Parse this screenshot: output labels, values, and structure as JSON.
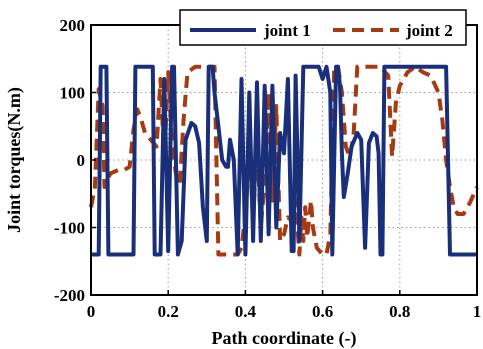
{
  "chart_data": {
    "type": "line",
    "title": "",
    "xlabel": "Path coordinate (-)",
    "ylabel": "Joint torques(N.m)",
    "xlim": [
      0,
      1
    ],
    "ylim": [
      -200,
      200
    ],
    "x_ticks": [
      "0",
      "0.2",
      "0.4",
      "0.6",
      "0.8",
      "1"
    ],
    "y_ticks": [
      "200",
      "100",
      "0",
      "-100",
      "-200"
    ],
    "grid": true,
    "legend_position": "top-right",
    "series": [
      {
        "name": "joint 1",
        "color": "#1a2f7a",
        "style": "solid",
        "points": [
          [
            0.0,
            -140
          ],
          [
            0.02,
            -140
          ],
          [
            0.025,
            138
          ],
          [
            0.04,
            138
          ],
          [
            0.045,
            -140
          ],
          [
            0.11,
            -140
          ],
          [
            0.115,
            138
          ],
          [
            0.16,
            138
          ],
          [
            0.165,
            -140
          ],
          [
            0.18,
            -140
          ],
          [
            0.19,
            120
          ],
          [
            0.2,
            -135
          ],
          [
            0.21,
            138
          ],
          [
            0.215,
            138
          ],
          [
            0.225,
            -140
          ],
          [
            0.235,
            -120
          ],
          [
            0.245,
            30
          ],
          [
            0.26,
            55
          ],
          [
            0.27,
            50
          ],
          [
            0.28,
            25
          ],
          [
            0.29,
            -70
          ],
          [
            0.3,
            -120
          ],
          [
            0.305,
            138
          ],
          [
            0.315,
            138
          ],
          [
            0.32,
            100
          ],
          [
            0.33,
            50
          ],
          [
            0.34,
            0
          ],
          [
            0.35,
            -10
          ],
          [
            0.355,
            -10
          ],
          [
            0.36,
            30
          ],
          [
            0.37,
            0
          ],
          [
            0.38,
            -140
          ],
          [
            0.39,
            120
          ],
          [
            0.4,
            -140
          ],
          [
            0.41,
            100
          ],
          [
            0.42,
            -120
          ],
          [
            0.43,
            115
          ],
          [
            0.44,
            -120
          ],
          [
            0.45,
            110
          ],
          [
            0.46,
            -110
          ],
          [
            0.47,
            110
          ],
          [
            0.48,
            -100
          ],
          [
            0.49,
            40
          ],
          [
            0.5,
            10
          ],
          [
            0.51,
            120
          ],
          [
            0.52,
            -135
          ],
          [
            0.525,
            -135
          ],
          [
            0.53,
            125
          ],
          [
            0.54,
            -120
          ],
          [
            0.55,
            138
          ],
          [
            0.56,
            138
          ],
          [
            0.57,
            138
          ],
          [
            0.59,
            138
          ],
          [
            0.6,
            120
          ],
          [
            0.61,
            138
          ],
          [
            0.62,
            100
          ],
          [
            0.625,
            -140
          ],
          [
            0.635,
            138
          ],
          [
            0.64,
            138
          ],
          [
            0.645,
            110
          ],
          [
            0.65,
            10
          ],
          [
            0.655,
            -55
          ],
          [
            0.665,
            -20
          ],
          [
            0.675,
            20
          ],
          [
            0.69,
            40
          ],
          [
            0.7,
            30
          ],
          [
            0.71,
            -130
          ],
          [
            0.72,
            25
          ],
          [
            0.73,
            40
          ],
          [
            0.74,
            35
          ],
          [
            0.745,
            10
          ],
          [
            0.75,
            -140
          ],
          [
            0.755,
            -140
          ],
          [
            0.76,
            138
          ],
          [
            0.8,
            138
          ],
          [
            0.85,
            138
          ],
          [
            0.9,
            138
          ],
          [
            0.92,
            138
          ],
          [
            0.93,
            -140
          ],
          [
            1.0,
            -140
          ]
        ]
      },
      {
        "name": "joint 2",
        "color": "#a63a10",
        "style": "dashed",
        "points": [
          [
            0.0,
            -70
          ],
          [
            0.01,
            -40
          ],
          [
            0.02,
            105
          ],
          [
            0.03,
            80
          ],
          [
            0.035,
            -40
          ],
          [
            0.05,
            -20
          ],
          [
            0.07,
            -15
          ],
          [
            0.085,
            -15
          ],
          [
            0.1,
            -10
          ],
          [
            0.11,
            45
          ],
          [
            0.12,
            75
          ],
          [
            0.13,
            60
          ],
          [
            0.14,
            40
          ],
          [
            0.155,
            30
          ],
          [
            0.17,
            20
          ],
          [
            0.18,
            120
          ],
          [
            0.19,
            0
          ],
          [
            0.2,
            130
          ],
          [
            0.21,
            20
          ],
          [
            0.22,
            -20
          ],
          [
            0.23,
            -35
          ],
          [
            0.24,
            60
          ],
          [
            0.25,
            130
          ],
          [
            0.27,
            138
          ],
          [
            0.3,
            138
          ],
          [
            0.32,
            138
          ],
          [
            0.33,
            -140
          ],
          [
            0.35,
            -140
          ],
          [
            0.37,
            -140
          ],
          [
            0.38,
            -140
          ],
          [
            0.39,
            -130
          ],
          [
            0.4,
            -80
          ],
          [
            0.41,
            20
          ],
          [
            0.42,
            -90
          ],
          [
            0.43,
            30
          ],
          [
            0.44,
            -100
          ],
          [
            0.45,
            -30
          ],
          [
            0.46,
            100
          ],
          [
            0.47,
            -60
          ],
          [
            0.48,
            80
          ],
          [
            0.49,
            -120
          ],
          [
            0.5,
            -110
          ],
          [
            0.51,
            -85
          ],
          [
            0.52,
            -90
          ],
          [
            0.53,
            -60
          ],
          [
            0.54,
            -140
          ],
          [
            0.545,
            -85
          ],
          [
            0.55,
            -120
          ],
          [
            0.555,
            -70
          ],
          [
            0.56,
            -115
          ],
          [
            0.57,
            -60
          ],
          [
            0.575,
            -100
          ],
          [
            0.585,
            -130
          ],
          [
            0.6,
            -140
          ],
          [
            0.61,
            -140
          ],
          [
            0.62,
            -110
          ],
          [
            0.63,
            138
          ],
          [
            0.64,
            138
          ],
          [
            0.65,
            100
          ],
          [
            0.66,
            20
          ],
          [
            0.67,
            5
          ],
          [
            0.68,
            35
          ],
          [
            0.69,
            138
          ],
          [
            0.72,
            138
          ],
          [
            0.75,
            138
          ],
          [
            0.77,
            125
          ],
          [
            0.78,
            5
          ],
          [
            0.79,
            85
          ],
          [
            0.8,
            110
          ],
          [
            0.82,
            130
          ],
          [
            0.84,
            138
          ],
          [
            0.86,
            130
          ],
          [
            0.88,
            125
          ],
          [
            0.9,
            100
          ],
          [
            0.91,
            60
          ],
          [
            0.92,
            0
          ],
          [
            0.93,
            -40
          ],
          [
            0.94,
            -70
          ],
          [
            0.95,
            -80
          ],
          [
            0.965,
            -80
          ],
          [
            0.98,
            -65
          ],
          [
            1.0,
            -40
          ]
        ]
      }
    ]
  }
}
